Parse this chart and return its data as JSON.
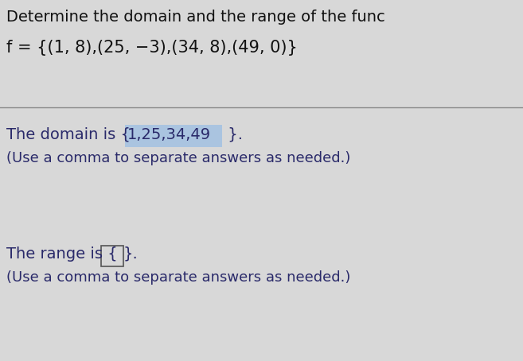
{
  "title_line": "Determine the domain and the range of the func",
  "function_line": "f = {(1, 8),(25, −3),(34, 8),(49, 0)}",
  "domain_sub": "(Use a comma to separate answers as needed.)",
  "range_sub": "(Use a comma to separate answers as needed.)",
  "bg_color": "#d8d8d8",
  "highlight_color": "#aac4e0",
  "text_color": "#2a2a6a",
  "title_color": "#111111",
  "font_size_title": 14,
  "font_size_function": 15,
  "font_size_body": 14,
  "font_size_sub": 13
}
